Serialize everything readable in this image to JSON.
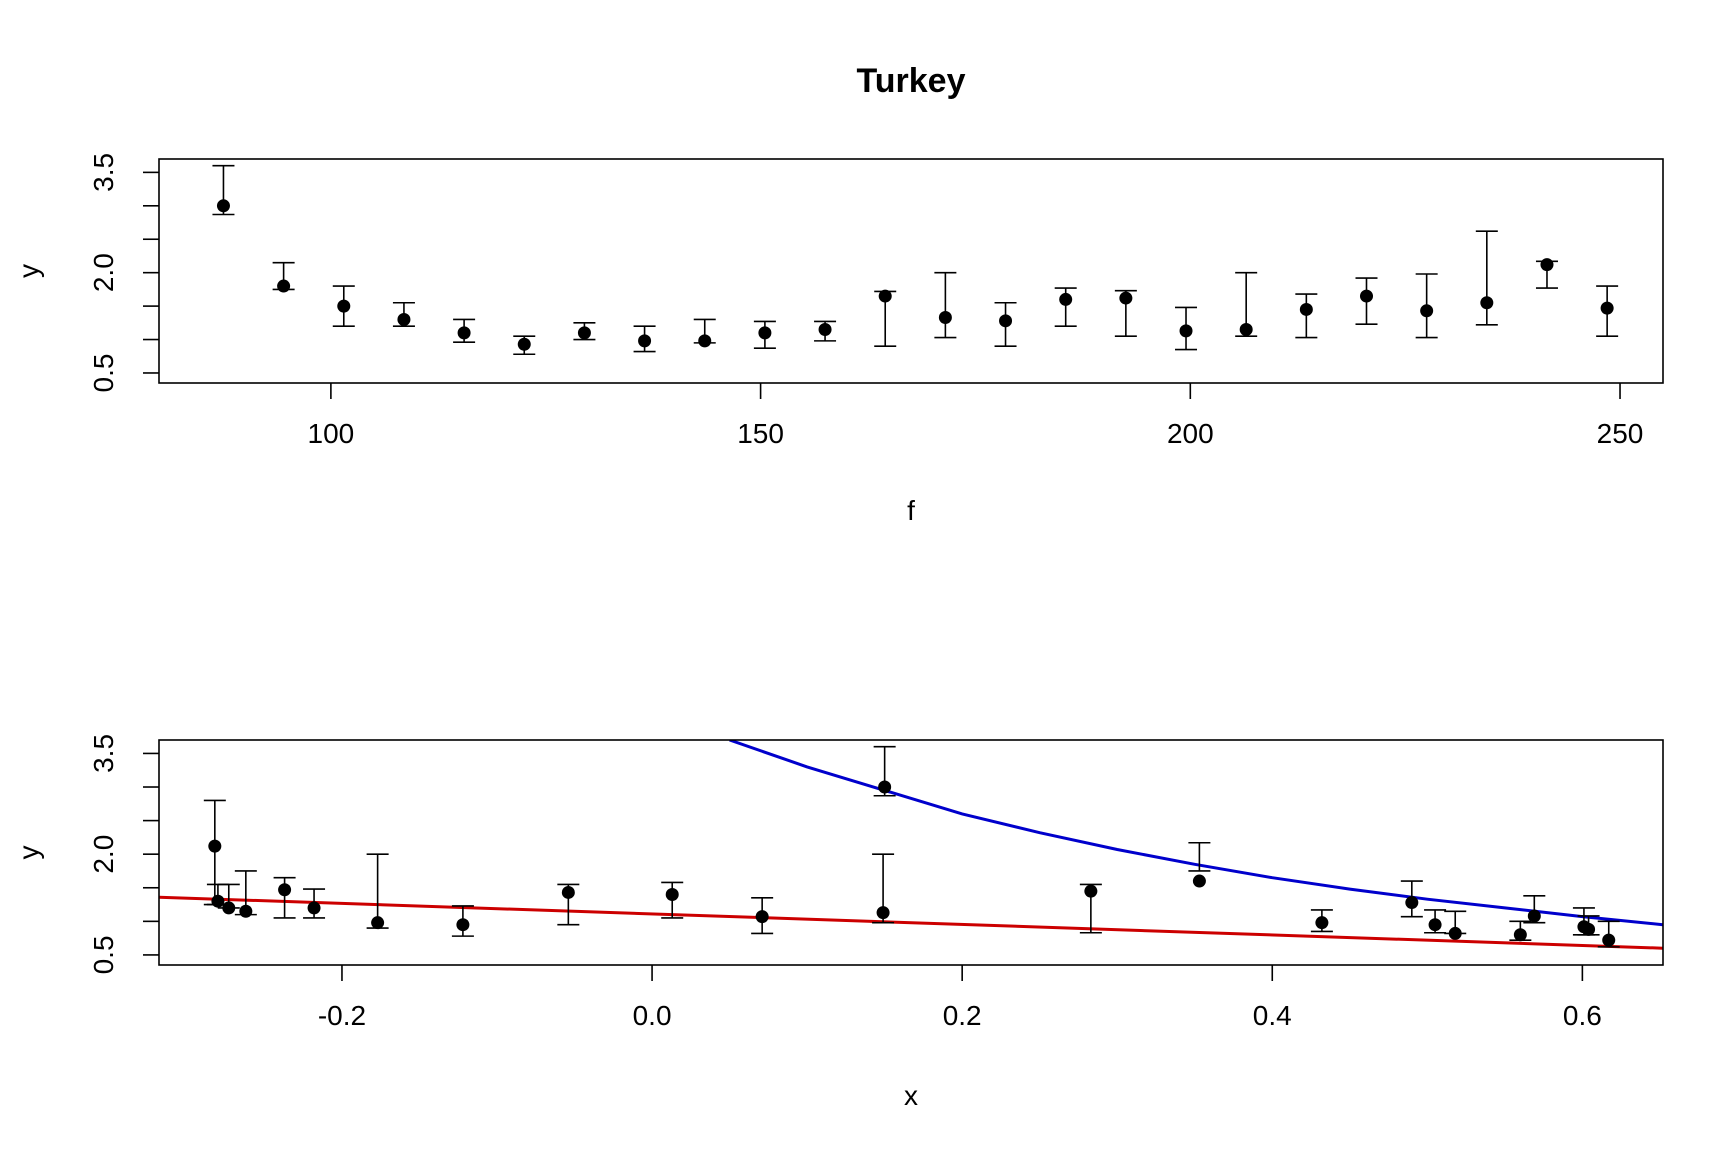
{
  "title": "Turkey",
  "chart_data": [
    {
      "type": "scatter",
      "xlabel": "f",
      "ylabel": "y",
      "xlim": [
        80,
        255
      ],
      "ylim": [
        0.35,
        3.7
      ],
      "xticks": [
        100,
        150,
        200,
        250
      ],
      "xtick_labels": [
        "100",
        "150",
        "200",
        "250"
      ],
      "yticks": [
        0.5,
        1.0,
        1.5,
        2.0,
        2.5,
        3.0,
        3.5
      ],
      "ytick_labels": [
        "0.5",
        "",
        "",
        "2.0",
        "",
        "",
        "3.5"
      ],
      "points": [
        {
          "x": 87.5,
          "y": 3.0,
          "lo": 2.87,
          "hi": 3.6
        },
        {
          "x": 94.5,
          "y": 1.8,
          "lo": 1.75,
          "hi": 2.15
        },
        {
          "x": 101.5,
          "y": 1.5,
          "lo": 1.2,
          "hi": 1.8
        },
        {
          "x": 108.5,
          "y": 1.3,
          "lo": 1.2,
          "hi": 1.55
        },
        {
          "x": 115.5,
          "y": 1.1,
          "lo": 0.96,
          "hi": 1.3
        },
        {
          "x": 122.5,
          "y": 0.93,
          "lo": 0.78,
          "hi": 1.05
        },
        {
          "x": 129.5,
          "y": 1.1,
          "lo": 1.0,
          "hi": 1.25
        },
        {
          "x": 136.5,
          "y": 0.98,
          "lo": 0.82,
          "hi": 1.2
        },
        {
          "x": 143.5,
          "y": 0.98,
          "lo": 0.95,
          "hi": 1.3
        },
        {
          "x": 150.5,
          "y": 1.1,
          "lo": 0.87,
          "hi": 1.27
        },
        {
          "x": 157.5,
          "y": 1.15,
          "lo": 0.98,
          "hi": 1.27
        },
        {
          "x": 164.5,
          "y": 1.65,
          "lo": 0.9,
          "hi": 1.72
        },
        {
          "x": 171.5,
          "y": 1.33,
          "lo": 1.03,
          "hi": 2.0
        },
        {
          "x": 178.5,
          "y": 1.28,
          "lo": 0.9,
          "hi": 1.55
        },
        {
          "x": 185.5,
          "y": 1.6,
          "lo": 1.2,
          "hi": 1.77
        },
        {
          "x": 192.5,
          "y": 1.62,
          "lo": 1.05,
          "hi": 1.73
        },
        {
          "x": 199.5,
          "y": 1.13,
          "lo": 0.85,
          "hi": 1.48
        },
        {
          "x": 206.5,
          "y": 1.15,
          "lo": 1.05,
          "hi": 2.0
        },
        {
          "x": 213.5,
          "y": 1.45,
          "lo": 1.03,
          "hi": 1.68
        },
        {
          "x": 220.5,
          "y": 1.65,
          "lo": 1.23,
          "hi": 1.92
        },
        {
          "x": 227.5,
          "y": 1.43,
          "lo": 1.03,
          "hi": 1.98
        },
        {
          "x": 234.5,
          "y": 1.55,
          "lo": 1.22,
          "hi": 2.62
        },
        {
          "x": 241.5,
          "y": 2.12,
          "lo": 1.77,
          "hi": 2.17
        },
        {
          "x": 248.5,
          "y": 1.47,
          "lo": 1.05,
          "hi": 1.8
        }
      ]
    },
    {
      "type": "scatter",
      "xlabel": "x",
      "ylabel": "y",
      "xlim": [
        -0.318,
        0.652
      ],
      "ylim": [
        0.35,
        3.7
      ],
      "xticks": [
        -0.2,
        0.0,
        0.2,
        0.4,
        0.6
      ],
      "xtick_labels": [
        "-0.2",
        "0.0",
        "0.2",
        "0.4",
        "0.6"
      ],
      "yticks": [
        0.5,
        1.0,
        1.5,
        2.0,
        2.5,
        3.0,
        3.5
      ],
      "ytick_labels": [
        "0.5",
        "",
        "",
        "2.0",
        "",
        "",
        "3.5"
      ],
      "points": [
        {
          "x": -0.282,
          "y": 2.12,
          "lo": 1.25,
          "hi": 2.8
        },
        {
          "x": -0.28,
          "y": 1.3,
          "lo": 1.25,
          "hi": 1.55
        },
        {
          "x": -0.273,
          "y": 1.2,
          "lo": 1.2,
          "hi": 1.55
        },
        {
          "x": -0.262,
          "y": 1.15,
          "lo": 1.1,
          "hi": 1.75
        },
        {
          "x": -0.237,
          "y": 1.47,
          "lo": 1.05,
          "hi": 1.65
        },
        {
          "x": -0.218,
          "y": 1.2,
          "lo": 1.05,
          "hi": 1.48
        },
        {
          "x": -0.177,
          "y": 0.98,
          "lo": 0.9,
          "hi": 2.0
        },
        {
          "x": -0.122,
          "y": 0.95,
          "lo": 0.78,
          "hi": 1.23
        },
        {
          "x": -0.054,
          "y": 1.43,
          "lo": 0.95,
          "hi": 1.55
        },
        {
          "x": 0.013,
          "y": 1.4,
          "lo": 1.05,
          "hi": 1.58
        },
        {
          "x": 0.071,
          "y": 1.07,
          "lo": 0.82,
          "hi": 1.35
        },
        {
          "x": 0.149,
          "y": 1.13,
          "lo": 0.98,
          "hi": 2.0
        },
        {
          "x": 0.15,
          "y": 3.0,
          "lo": 2.87,
          "hi": 3.6
        },
        {
          "x": 0.283,
          "y": 1.45,
          "lo": 0.83,
          "hi": 1.55
        },
        {
          "x": 0.353,
          "y": 1.6,
          "lo": 1.75,
          "hi": 2.17
        },
        {
          "x": 0.432,
          "y": 0.98,
          "lo": 0.85,
          "hi": 1.17
        },
        {
          "x": 0.49,
          "y": 1.28,
          "lo": 1.07,
          "hi": 1.6
        },
        {
          "x": 0.505,
          "y": 0.95,
          "lo": 0.83,
          "hi": 1.17
        },
        {
          "x": 0.518,
          "y": 0.82,
          "lo": 0.82,
          "hi": 1.15
        },
        {
          "x": 0.56,
          "y": 0.8,
          "lo": 0.72,
          "hi": 1.0
        },
        {
          "x": 0.569,
          "y": 1.08,
          "lo": 0.98,
          "hi": 1.38
        },
        {
          "x": 0.601,
          "y": 0.92,
          "lo": 0.8,
          "hi": 1.2
        },
        {
          "x": 0.604,
          "y": 0.88,
          "lo": 0.8,
          "hi": 1.08
        },
        {
          "x": 0.617,
          "y": 0.72,
          "lo": 0.62,
          "hi": 1.0
        }
      ],
      "lines": [
        {
          "color": "#cc0000",
          "width": 3,
          "x": [
            -0.318,
            0.652
          ],
          "y": [
            1.36,
            0.6
          ]
        },
        {
          "color": "#0000cc",
          "width": 3,
          "x": [
            0.05,
            0.1,
            0.15,
            0.2,
            0.25,
            0.3,
            0.35,
            0.4,
            0.45,
            0.5,
            0.55,
            0.6,
            0.652
          ],
          "y": [
            3.7,
            3.3,
            2.95,
            2.6,
            2.32,
            2.07,
            1.85,
            1.65,
            1.48,
            1.33,
            1.2,
            1.07,
            0.95
          ]
        }
      ]
    }
  ]
}
